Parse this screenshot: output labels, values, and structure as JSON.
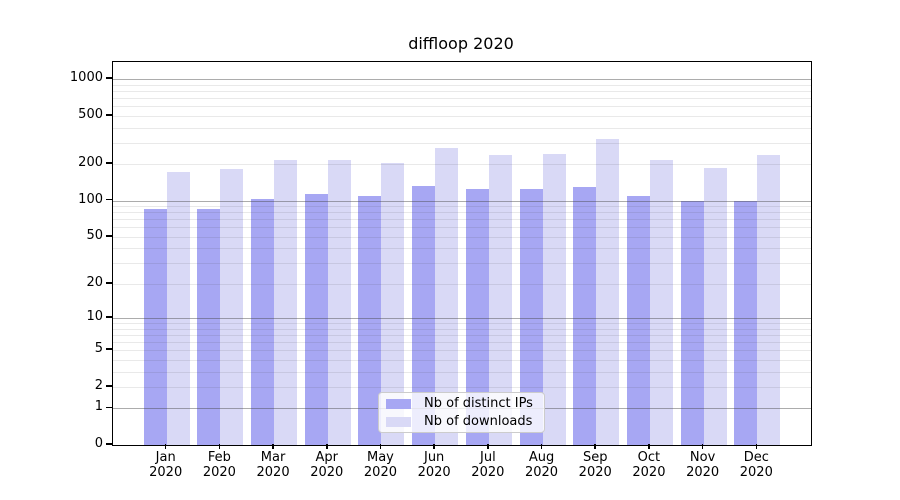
{
  "page": {
    "title": "diffloop 2020"
  },
  "colors": {
    "ips_bar": "#a7a7f3",
    "downloads_bar": "#d9d9f6",
    "grid_major": "rgba(70,70,70,0.45)",
    "grid_minor": "rgba(70,70,70,0.12)",
    "axis": "#000000",
    "legend_border": "#cccccc",
    "background": "#ffffff"
  },
  "chart_data": {
    "type": "bar",
    "title": "diffloop 2020",
    "categories": [
      "Jan 2020",
      "Feb 2020",
      "Mar 2020",
      "Apr 2020",
      "May 2020",
      "Jun 2020",
      "Jul 2020",
      "Aug 2020",
      "Sep 2020",
      "Oct 2020",
      "Nov 2020",
      "Dec 2020"
    ],
    "series": [
      {
        "name": "Nb of distinct IPs",
        "color": "#a7a7f3",
        "values": [
          85,
          85,
          103,
          113,
          110,
          133,
          124,
          124,
          129,
          110,
          99,
          100
        ]
      },
      {
        "name": "Nb of downloads",
        "color": "#d9d9f6",
        "values": [
          172,
          183,
          216,
          216,
          204,
          273,
          240,
          243,
          321,
          216,
          188,
          240
        ]
      }
    ],
    "yscale": "log1p",
    "yticks": [
      0,
      1,
      2,
      5,
      10,
      20,
      50,
      100,
      200,
      500,
      1000
    ],
    "ylim": [
      0,
      1385
    ],
    "xlabel": "",
    "ylabel": "",
    "grid": true,
    "legend_position": "inside lower-center"
  }
}
